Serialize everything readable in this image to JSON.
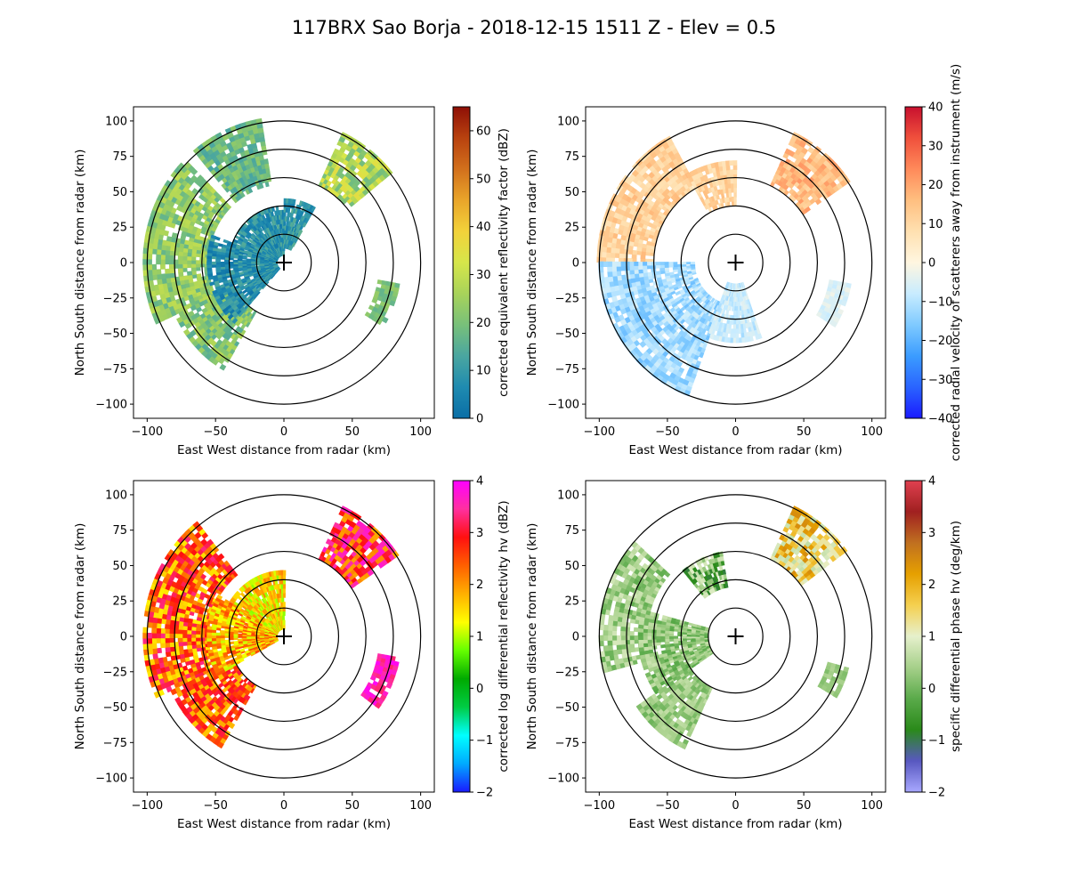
{
  "figure": {
    "title": "117BRX Sao Borja - 2018-12-15 1511 Z -  Elev = 0.5"
  },
  "palettes": {
    "reflectivity": [
      "#0a6ea6",
      "#1f8bb0",
      "#4aa6a0",
      "#78c07a",
      "#a8d35a",
      "#d6e64a",
      "#f2d23a",
      "#e9a52a",
      "#d2701c",
      "#b8420f",
      "#8e0f06"
    ],
    "velocity": [
      "#1a1aff",
      "#2a64ff",
      "#3b9cff",
      "#7fcaff",
      "#c8ecff",
      "#fff6e0",
      "#ffe0b0",
      "#ffbf80",
      "#ff8a5a",
      "#f0503c",
      "#c8102e"
    ],
    "zdr": [
      "#1a1aff",
      "#00aaff",
      "#00ffff",
      "#00cc44",
      "#00aa00",
      "#66ff00",
      "#ffff00",
      "#ffb000",
      "#ff6000",
      "#ff1010",
      "#ff30a0",
      "#ff00ff"
    ],
    "kdp": [
      "#a8a8ff",
      "#5858c0",
      "#2a8a1a",
      "#5aaa4a",
      "#a6d08a",
      "#e6f0cc",
      "#f5d050",
      "#e6a000",
      "#c07020",
      "#a02020",
      "#e04050"
    ]
  },
  "chart_data": [
    {
      "type": "heatmap",
      "panel": "top-left",
      "field": "corrected_reflectivity",
      "xlabel": "East West distance from radar (km)",
      "ylabel": "North South distance from radar (km)",
      "xlim": [
        -110,
        110
      ],
      "ylim": [
        -110,
        110
      ],
      "xticks": [
        -100,
        -50,
        0,
        50,
        100
      ],
      "yticks": [
        -100,
        -75,
        -50,
        -25,
        0,
        25,
        50,
        75,
        100
      ],
      "range_rings_km": [
        20,
        40,
        60,
        80,
        100
      ],
      "colorbar": {
        "label": "corrected equivalent reflectivity factor (dBZ)",
        "vmin": 0,
        "vmax": 65,
        "ticks": [
          0,
          10,
          20,
          30,
          40,
          50,
          60
        ],
        "palette": "reflectivity"
      },
      "regions": [
        {
          "kind": "sector",
          "az_from": 245,
          "az_to": 315,
          "r_from": 55,
          "r_to": 100,
          "values": [
            18,
            24,
            28
          ]
        },
        {
          "kind": "sector",
          "az_from": 210,
          "az_to": 245,
          "r_from": 40,
          "r_to": 85,
          "values": [
            16,
            22,
            26
          ]
        },
        {
          "kind": "sector",
          "az_from": 220,
          "az_to": 290,
          "r_from": 5,
          "r_to": 55,
          "values": [
            3,
            7,
            12
          ]
        },
        {
          "kind": "sector",
          "az_from": 290,
          "az_to": 360,
          "r_from": 5,
          "r_to": 40,
          "values": [
            4,
            8,
            13
          ]
        },
        {
          "kind": "sector",
          "az_from": 0,
          "az_to": 30,
          "r_from": 10,
          "r_to": 45,
          "values": [
            5,
            9,
            14
          ]
        },
        {
          "kind": "sector",
          "az_from": 25,
          "az_to": 50,
          "r_from": 60,
          "r_to": 100,
          "values": [
            20,
            28,
            34
          ]
        },
        {
          "kind": "sector",
          "az_from": 320,
          "az_to": 350,
          "r_from": 55,
          "r_to": 100,
          "values": [
            14,
            18,
            22
          ]
        },
        {
          "kind": "sector",
          "az_from": 100,
          "az_to": 120,
          "r_from": 70,
          "r_to": 85,
          "values": [
            18,
            22
          ]
        }
      ]
    },
    {
      "type": "heatmap",
      "panel": "top-right",
      "field": "corrected_velocity",
      "xlabel": "East West distance from radar (km)",
      "ylabel": "North South distance from radar (km)",
      "xlim": [
        -110,
        110
      ],
      "ylim": [
        -110,
        110
      ],
      "xticks": [
        -100,
        -50,
        0,
        50,
        100
      ],
      "yticks": [
        -100,
        -75,
        -50,
        -25,
        0,
        25,
        50,
        75,
        100
      ],
      "range_rings_km": [
        20,
        40,
        60,
        80,
        100
      ],
      "colorbar": {
        "label": "corrected radial velocity of scatterers away from instrument (m/s)",
        "vmin": -40,
        "vmax": 40,
        "ticks": [
          -40,
          -30,
          -20,
          -10,
          0,
          10,
          20,
          30,
          40
        ],
        "palette": "velocity"
      },
      "regions": [
        {
          "kind": "sector",
          "az_from": 270,
          "az_to": 330,
          "r_from": 60,
          "r_to": 100,
          "values": [
            8,
            12,
            15
          ]
        },
        {
          "kind": "sector",
          "az_from": 200,
          "az_to": 270,
          "r_from": 30,
          "r_to": 100,
          "values": [
            -8,
            -12,
            -16
          ]
        },
        {
          "kind": "sector",
          "az_from": 25,
          "az_to": 55,
          "r_from": 60,
          "r_to": 100,
          "values": [
            12,
            16,
            20
          ]
        },
        {
          "kind": "sector",
          "az_from": 330,
          "az_to": 360,
          "r_from": 40,
          "r_to": 70,
          "values": [
            8,
            14
          ]
        },
        {
          "kind": "sector",
          "az_from": 160,
          "az_to": 200,
          "r_from": 15,
          "r_to": 55,
          "values": [
            -6,
            -10
          ]
        },
        {
          "kind": "sector",
          "az_from": 100,
          "az_to": 120,
          "r_from": 70,
          "r_to": 85,
          "values": [
            -4,
            -6
          ]
        }
      ]
    },
    {
      "type": "heatmap",
      "panel": "bottom-left",
      "field": "corrected_differential_reflectivity",
      "xlabel": "East West distance from radar (km)",
      "ylabel": "North South distance from radar (km)",
      "xlim": [
        -110,
        110
      ],
      "ylim": [
        -110,
        110
      ],
      "xticks": [
        -100,
        -50,
        0,
        50,
        100
      ],
      "yticks": [
        -100,
        -75,
        -50,
        -25,
        0,
        25,
        50,
        75,
        100
      ],
      "range_rings_km": [
        20,
        40,
        60,
        80,
        100
      ],
      "colorbar": {
        "label": "corrected log differential reflectivity hv (dBZ)",
        "vmin": -2,
        "vmax": 4,
        "ticks": [
          -2,
          -1,
          0,
          1,
          2,
          3,
          4
        ],
        "palette": "zdr"
      },
      "regions": [
        {
          "kind": "sector",
          "az_from": 245,
          "az_to": 320,
          "r_from": 55,
          "r_to": 100,
          "values": [
            1.5,
            2.2,
            2.8,
            3.2
          ]
        },
        {
          "kind": "sector",
          "az_from": 210,
          "az_to": 245,
          "r_from": 40,
          "r_to": 90,
          "values": [
            1.8,
            2.6,
            3.0
          ]
        },
        {
          "kind": "sector",
          "az_from": 240,
          "az_to": 300,
          "r_from": 5,
          "r_to": 55,
          "values": [
            1.2,
            1.8,
            2.4
          ]
        },
        {
          "kind": "sector",
          "az_from": 300,
          "az_to": 360,
          "r_from": 5,
          "r_to": 45,
          "values": [
            1.0,
            1.6,
            2.0
          ]
        },
        {
          "kind": "sector",
          "az_from": 25,
          "az_to": 55,
          "r_from": 60,
          "r_to": 100,
          "values": [
            2.0,
            3.0,
            3.6
          ]
        },
        {
          "kind": "sector",
          "az_from": 100,
          "az_to": 125,
          "r_from": 70,
          "r_to": 85,
          "values": [
            3.4,
            3.8
          ]
        }
      ]
    },
    {
      "type": "heatmap",
      "panel": "bottom-right",
      "field": "specific_differential_phase",
      "xlabel": "East West distance from radar (km)",
      "ylabel": "North South distance from radar (km)",
      "xlim": [
        -110,
        110
      ],
      "ylim": [
        -110,
        110
      ],
      "xticks": [
        -100,
        -50,
        0,
        50,
        100
      ],
      "yticks": [
        -100,
        -75,
        -50,
        -25,
        0,
        25,
        50,
        75,
        100
      ],
      "range_rings_km": [
        20,
        40,
        60,
        80,
        100
      ],
      "colorbar": {
        "label": "specific differential phase hv (deg/km)",
        "vmin": -2,
        "vmax": 4,
        "ticks": [
          -2,
          -1,
          0,
          1,
          2,
          3,
          4
        ],
        "palette": "kdp"
      },
      "regions": [
        {
          "kind": "sector",
          "az_from": 255,
          "az_to": 310,
          "r_from": 65,
          "r_to": 100,
          "values": [
            0.0,
            0.4,
            0.7
          ]
        },
        {
          "kind": "sector",
          "az_from": 235,
          "az_to": 285,
          "r_from": 20,
          "r_to": 70,
          "values": [
            -0.1,
            0.3,
            0.6
          ]
        },
        {
          "kind": "sector",
          "az_from": 205,
          "az_to": 235,
          "r_from": 40,
          "r_to": 85,
          "values": [
            0.1,
            0.5
          ]
        },
        {
          "kind": "sector",
          "az_from": 320,
          "az_to": 350,
          "r_from": 35,
          "r_to": 60,
          "values": [
            -0.8,
            0.3,
            0.8
          ]
        },
        {
          "kind": "sector",
          "az_from": 25,
          "az_to": 52,
          "r_from": 60,
          "r_to": 100,
          "values": [
            1.2,
            1.8,
            2.3,
            0.8
          ]
        },
        {
          "kind": "sector",
          "az_from": 105,
          "az_to": 120,
          "r_from": 70,
          "r_to": 85,
          "values": [
            0.2,
            0.4
          ]
        }
      ]
    }
  ]
}
